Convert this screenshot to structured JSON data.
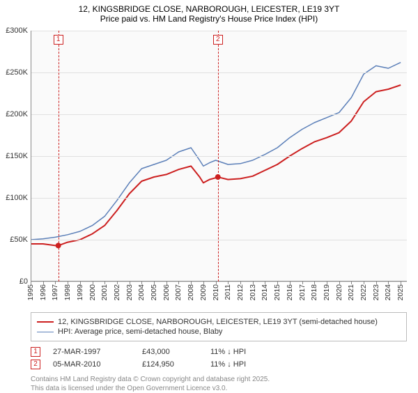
{
  "title_line1": "12, KINGSBRIDGE CLOSE, NARBOROUGH, LEICESTER, LE19 3YT",
  "title_line2": "Price paid vs. HM Land Registry's House Price Index (HPI)",
  "chart": {
    "type": "line",
    "background_color": "#fafafa",
    "grid_color": "#e0e0e0",
    "axis_color": "#888888",
    "x": {
      "min": 1995,
      "max": 2025.5,
      "ticks": [
        1995,
        1996,
        1997,
        1998,
        1999,
        2000,
        2001,
        2002,
        2003,
        2004,
        2005,
        2006,
        2007,
        2008,
        2009,
        2010,
        2011,
        2012,
        2013,
        2014,
        2015,
        2016,
        2017,
        2018,
        2019,
        2020,
        2021,
        2022,
        2023,
        2024,
        2025
      ]
    },
    "y": {
      "min": 0,
      "max": 300000,
      "ticks": [
        0,
        50000,
        100000,
        150000,
        200000,
        250000,
        300000
      ],
      "tick_labels": [
        "£0",
        "£50K",
        "£100K",
        "£150K",
        "£200K",
        "£250K",
        "£300K"
      ]
    },
    "label_fontsize": 11,
    "series": [
      {
        "name": "price_paid",
        "label": "12, KINGSBRIDGE CLOSE, NARBOROUGH, LEICESTER, LE19 3YT (semi-detached house)",
        "color": "#cc1f1f",
        "line_width": 2,
        "data": [
          [
            1995,
            45000
          ],
          [
            1996,
            45000
          ],
          [
            1997,
            43000
          ],
          [
            1997.24,
            43000
          ],
          [
            1998,
            47000
          ],
          [
            1999,
            50000
          ],
          [
            2000,
            57000
          ],
          [
            2001,
            67000
          ],
          [
            2002,
            85000
          ],
          [
            2003,
            105000
          ],
          [
            2004,
            120000
          ],
          [
            2005,
            125000
          ],
          [
            2006,
            128000
          ],
          [
            2007,
            134000
          ],
          [
            2008,
            138000
          ],
          [
            2008.7,
            125000
          ],
          [
            2009,
            118000
          ],
          [
            2009.5,
            122000
          ],
          [
            2010,
            124000
          ],
          [
            2010.18,
            124950
          ],
          [
            2011,
            122000
          ],
          [
            2012,
            123000
          ],
          [
            2013,
            126000
          ],
          [
            2014,
            133000
          ],
          [
            2015,
            140000
          ],
          [
            2016,
            150000
          ],
          [
            2017,
            159000
          ],
          [
            2018,
            167000
          ],
          [
            2019,
            172000
          ],
          [
            2020,
            178000
          ],
          [
            2021,
            192000
          ],
          [
            2022,
            215000
          ],
          [
            2023,
            227000
          ],
          [
            2024,
            230000
          ],
          [
            2025,
            235000
          ]
        ]
      },
      {
        "name": "hpi",
        "label": "HPI: Average price, semi-detached house, Blaby",
        "color": "#5b7fb8",
        "line_width": 1.5,
        "data": [
          [
            1995,
            50000
          ],
          [
            1996,
            51000
          ],
          [
            1997,
            53000
          ],
          [
            1998,
            56000
          ],
          [
            1999,
            60000
          ],
          [
            2000,
            67000
          ],
          [
            2001,
            78000
          ],
          [
            2002,
            97000
          ],
          [
            2003,
            118000
          ],
          [
            2004,
            135000
          ],
          [
            2005,
            140000
          ],
          [
            2006,
            145000
          ],
          [
            2007,
            155000
          ],
          [
            2008,
            160000
          ],
          [
            2008.7,
            145000
          ],
          [
            2009,
            138000
          ],
          [
            2009.5,
            142000
          ],
          [
            2010,
            145000
          ],
          [
            2011,
            140000
          ],
          [
            2012,
            141000
          ],
          [
            2013,
            145000
          ],
          [
            2014,
            152000
          ],
          [
            2015,
            160000
          ],
          [
            2016,
            172000
          ],
          [
            2017,
            182000
          ],
          [
            2018,
            190000
          ],
          [
            2019,
            196000
          ],
          [
            2020,
            202000
          ],
          [
            2021,
            220000
          ],
          [
            2022,
            248000
          ],
          [
            2023,
            258000
          ],
          [
            2024,
            255000
          ],
          [
            2025,
            262000
          ]
        ]
      }
    ],
    "sale_markers": [
      {
        "n": "1",
        "year": 1997.24,
        "value": 43000,
        "color": "#cc1f1f"
      },
      {
        "n": "2",
        "year": 2010.18,
        "value": 124950,
        "color": "#cc1f1f"
      }
    ]
  },
  "legend": {
    "border_color": "#bbbbbb",
    "items": [
      {
        "color": "#cc1f1f",
        "width": 2,
        "label": "12, KINGSBRIDGE CLOSE, NARBOROUGH, LEICESTER, LE19 3YT (semi-detached house)"
      },
      {
        "color": "#5b7fb8",
        "width": 1.5,
        "label": "HPI: Average price, semi-detached house, Blaby"
      }
    ]
  },
  "sales": [
    {
      "n": "1",
      "color": "#cc1f1f",
      "date": "27-MAR-1997",
      "price": "£43,000",
      "diff_pct": "11%",
      "diff_dir": "↓",
      "diff_suffix": "HPI"
    },
    {
      "n": "2",
      "color": "#cc1f1f",
      "date": "05-MAR-2010",
      "price": "£124,950",
      "diff_pct": "11%",
      "diff_dir": "↓",
      "diff_suffix": "HPI"
    }
  ],
  "copyright_line1": "Contains HM Land Registry data © Crown copyright and database right 2025.",
  "copyright_line2": "This data is licensed under the Open Government Licence v3.0."
}
